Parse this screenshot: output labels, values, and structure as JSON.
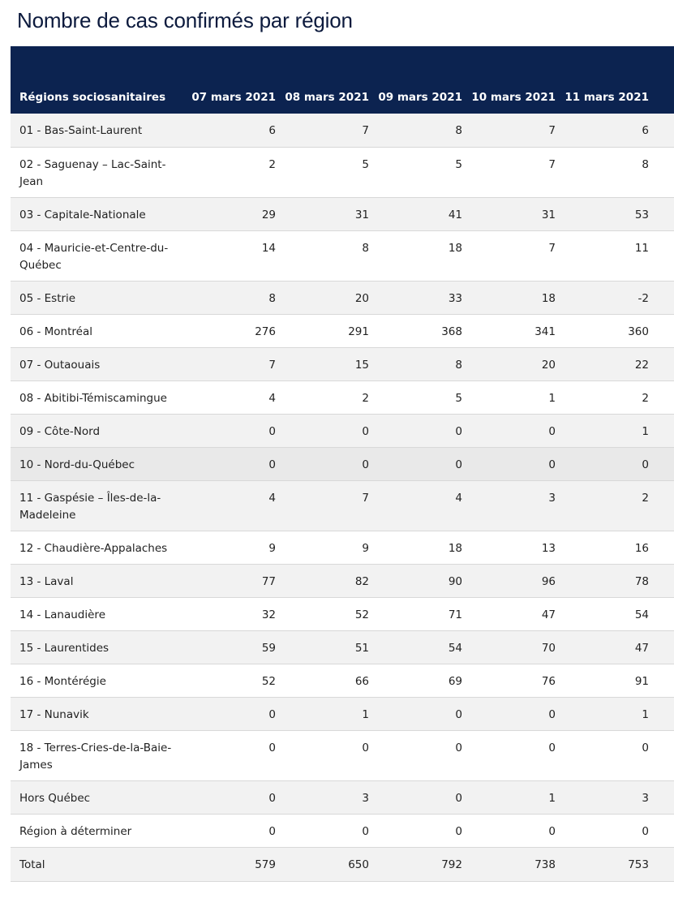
{
  "title": "Nombre de cas confirmés par région",
  "table": {
    "headers": [
      "Régions sociosanitaires",
      "07 mars 2021",
      "08 mars 2021",
      "09 mars 2021",
      "10 mars 2021",
      "11 mars 2021"
    ],
    "rows": [
      {
        "region": "01 - Bas-Saint-Laurent",
        "values": [
          "6",
          "7",
          "8",
          "7",
          "6"
        ]
      },
      {
        "region": "02 - Saguenay – Lac-Saint-Jean",
        "values": [
          "2",
          "5",
          "5",
          "7",
          "8"
        ]
      },
      {
        "region": "03 - Capitale-Nationale",
        "values": [
          "29",
          "31",
          "41",
          "31",
          "53"
        ]
      },
      {
        "region": "04 - Mauricie-et-Centre-du-Québec",
        "values": [
          "14",
          "8",
          "18",
          "7",
          "11"
        ]
      },
      {
        "region": "05 - Estrie",
        "values": [
          "8",
          "20",
          "33",
          "18",
          "-2"
        ]
      },
      {
        "region": "06 - Montréal",
        "values": [
          "276",
          "291",
          "368",
          "341",
          "360"
        ]
      },
      {
        "region": "07 - Outaouais",
        "values": [
          "7",
          "15",
          "8",
          "20",
          "22"
        ]
      },
      {
        "region": "08 - Abitibi-Témiscamingue",
        "values": [
          "4",
          "2",
          "5",
          "1",
          "2"
        ]
      },
      {
        "region": "09 - Côte-Nord",
        "values": [
          "0",
          "0",
          "0",
          "0",
          "1"
        ]
      },
      {
        "region": "10 - Nord-du-Québec",
        "values": [
          "0",
          "0",
          "0",
          "0",
          "0"
        ]
      },
      {
        "region": "11 - Gaspésie – Îles-de-la-Madeleine",
        "values": [
          "4",
          "7",
          "4",
          "3",
          "2"
        ]
      },
      {
        "region": "12 - Chaudière-Appalaches",
        "values": [
          "9",
          "9",
          "18",
          "13",
          "16"
        ]
      },
      {
        "region": "13 - Laval",
        "values": [
          "77",
          "82",
          "90",
          "96",
          "78"
        ]
      },
      {
        "region": "14 - Lanaudière",
        "values": [
          "32",
          "52",
          "71",
          "47",
          "54"
        ]
      },
      {
        "region": "15 - Laurentides",
        "values": [
          "59",
          "51",
          "54",
          "70",
          "47"
        ]
      },
      {
        "region": "16 - Montérégie",
        "values": [
          "52",
          "66",
          "69",
          "76",
          "91"
        ]
      },
      {
        "region": "17 - Nunavik",
        "values": [
          "0",
          "1",
          "0",
          "0",
          "1"
        ]
      },
      {
        "region": "18 - Terres-Cries-de-la-Baie-James",
        "values": [
          "0",
          "0",
          "0",
          "0",
          "0"
        ]
      },
      {
        "region": "Hors Québec",
        "values": [
          "0",
          "3",
          "0",
          "1",
          "3"
        ]
      },
      {
        "region": "Région à déterminer",
        "values": [
          "0",
          "0",
          "0",
          "0",
          "0"
        ]
      },
      {
        "region": "Total",
        "values": [
          "579",
          "650",
          "792",
          "738",
          "753"
        ]
      }
    ]
  },
  "colors": {
    "header_bg": "#0c2350",
    "title_color": "#0c1a3d",
    "row_alt": "#f2f2f2",
    "row_hover": "#e9e9e9"
  }
}
